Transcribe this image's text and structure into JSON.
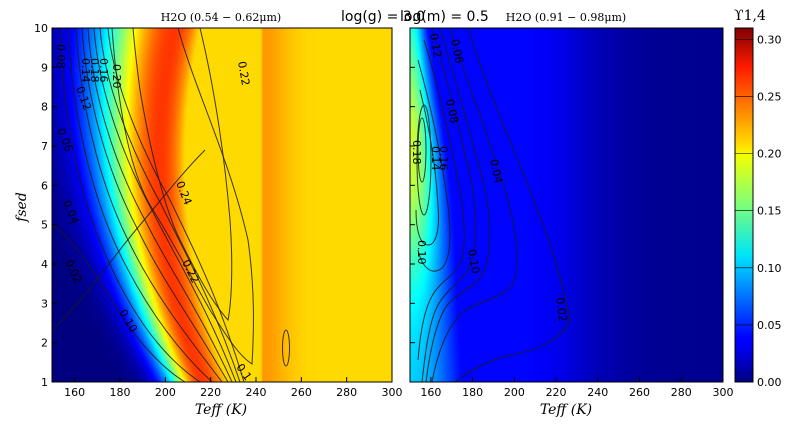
{
  "header": {
    "logg_label": "log(g) = 3.0",
    "logm_label": "log(m) = 0.5"
  },
  "chart_data": [
    {
      "type": "heatmap",
      "title": "H2O (0.54 − 0.62μm)",
      "xlabel": "Teff (K)",
      "ylabel": "fsed",
      "xlim": [
        150,
        300
      ],
      "ylim": [
        1,
        10
      ],
      "x_ticks": [
        "160",
        "180",
        "200",
        "220",
        "240",
        "260",
        "280",
        "300"
      ],
      "y_ticks": [
        "1",
        "2",
        "3",
        "4",
        "5",
        "6",
        "7",
        "8",
        "9",
        "10"
      ],
      "contour_labels": [
        "0.08",
        "0.20",
        "0.16",
        "0.18",
        "0.14",
        "0.12",
        "0.22",
        "0.06",
        "0.24",
        "0.04",
        "0.22",
        "0.02",
        "0.10",
        "0.1"
      ],
      "peak_value": 0.255
    },
    {
      "type": "heatmap",
      "title": "H2O (0.91 − 0.98μm)",
      "xlabel": "Teff (K)",
      "ylabel": "",
      "xlim": [
        150,
        300
      ],
      "ylim": [
        1,
        10
      ],
      "x_ticks": [
        "160",
        "180",
        "200",
        "220",
        "240",
        "260",
        "280",
        "300"
      ],
      "contour_labels": [
        "0.12",
        "0.06",
        "0.08",
        "0.18",
        "0.14",
        "0.16",
        "0.10",
        "0.04",
        "0.10",
        "0.02"
      ],
      "peak_value": 0.18
    }
  ],
  "colorbar": {
    "label": "ϒ1,4",
    "range": [
      0,
      0.31
    ],
    "ticks": [
      "0.00",
      "0.05",
      "0.10",
      "0.15",
      "0.20",
      "0.25",
      "0.30"
    ]
  },
  "colors": {
    "cmap_low": "#00007f",
    "cmap_high": "#7f0000"
  }
}
